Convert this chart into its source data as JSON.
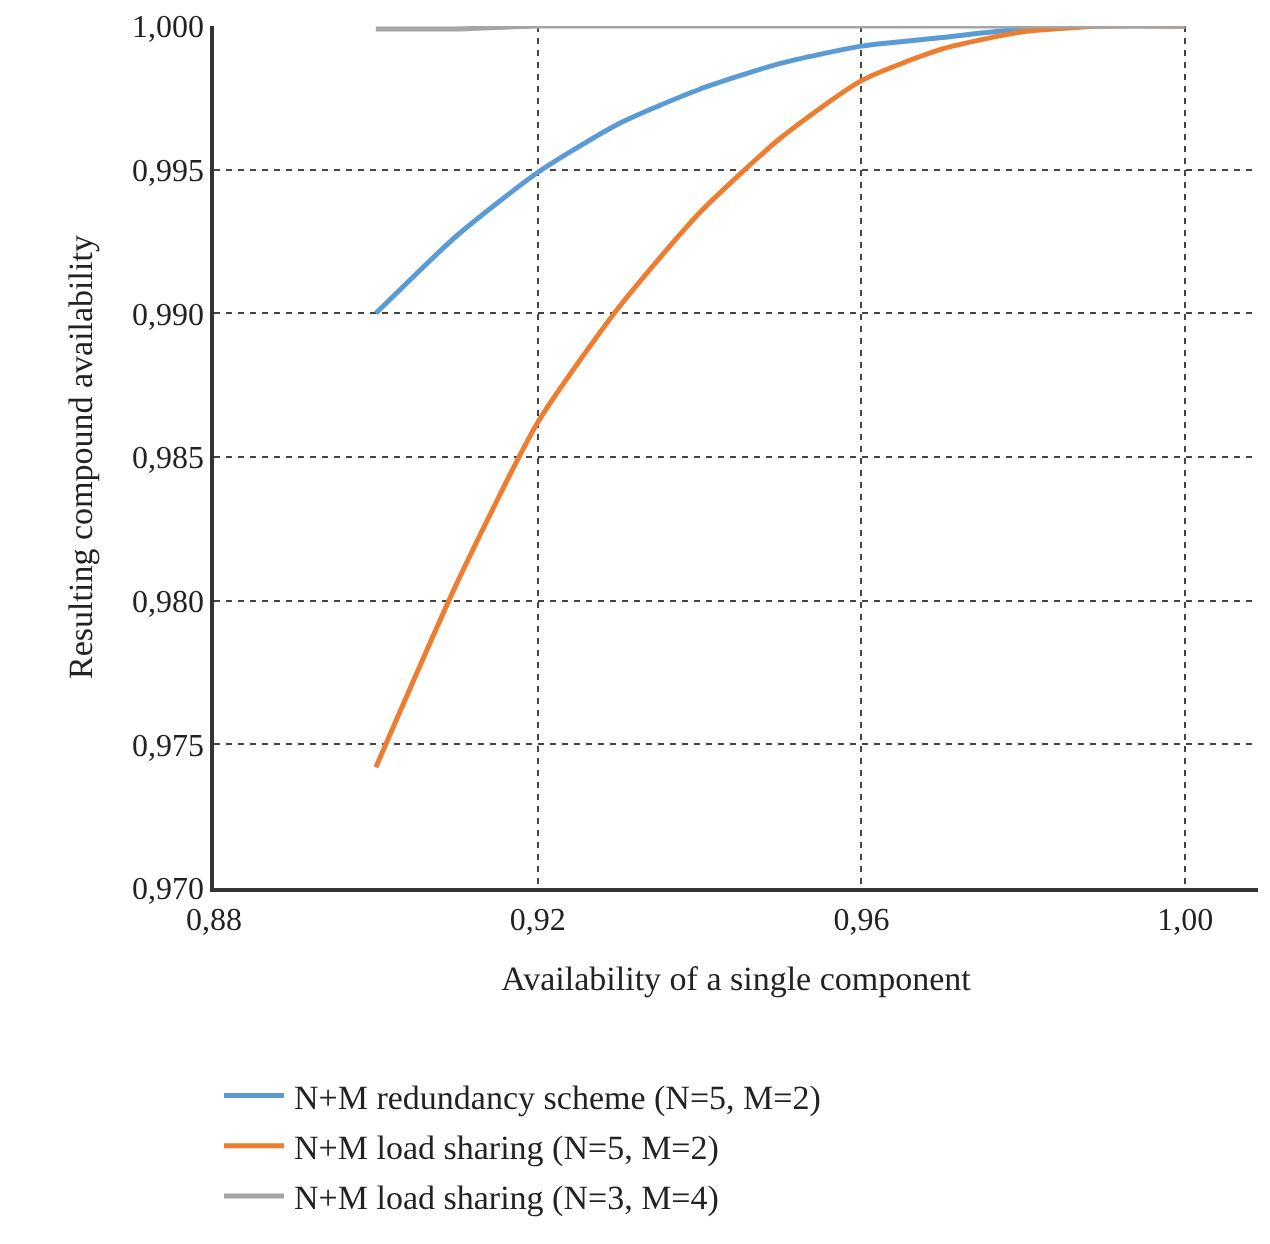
{
  "chart_data": {
    "type": "line",
    "xlabel": "Availability of a single component",
    "ylabel": "Resulting compound availability",
    "x": [
      0.9,
      0.91,
      0.92,
      0.93,
      0.94,
      0.95,
      0.96,
      0.97,
      0.98,
      0.99,
      1.0
    ],
    "series": [
      {
        "name": "N+M redundancy scheme (N=5, M=2)",
        "color": "#5b9bd5",
        "values": [
          0.99,
          0.9927,
          0.9949,
          0.9966,
          0.9978,
          0.9987,
          0.9993,
          0.9996,
          0.9999,
          1.0,
          1.0
        ]
      },
      {
        "name": "N+M load sharing (N=5, M=2)",
        "color": "#ed7d31",
        "values": [
          0.9742,
          0.9806,
          0.9862,
          0.9902,
          0.9935,
          0.9961,
          0.9981,
          0.9992,
          0.9998,
          1.0,
          1.0
        ]
      },
      {
        "name": "N+M load sharing (N=3, M=4)",
        "color": "#a5a5a5",
        "values": [
          0.9999,
          0.9999,
          1.0,
          1.0,
          1.0,
          1.0,
          1.0,
          1.0,
          1.0,
          1.0,
          1.0
        ]
      }
    ],
    "xlim": [
      0.88,
      1.009
    ],
    "xticks": [
      {
        "value": 0.88,
        "label": "0,88"
      },
      {
        "value": 0.92,
        "label": "0,92"
      },
      {
        "value": 0.96,
        "label": "0,96"
      },
      {
        "value": 1.0,
        "label": "1,00"
      }
    ],
    "ylim": [
      0.97,
      1.0
    ],
    "yticks": [
      {
        "value": 0.97,
        "label": "0,970"
      },
      {
        "value": 0.975,
        "label": "0,975"
      },
      {
        "value": 0.98,
        "label": "0,980"
      },
      {
        "value": 0.985,
        "label": "0,985"
      },
      {
        "value": 0.99,
        "label": "0,990"
      },
      {
        "value": 0.995,
        "label": "0,995"
      },
      {
        "value": 1.0,
        "label": "1,000"
      }
    ],
    "grid": true,
    "legend": "bottom",
    "marker": "none",
    "line_style": "solid"
  }
}
